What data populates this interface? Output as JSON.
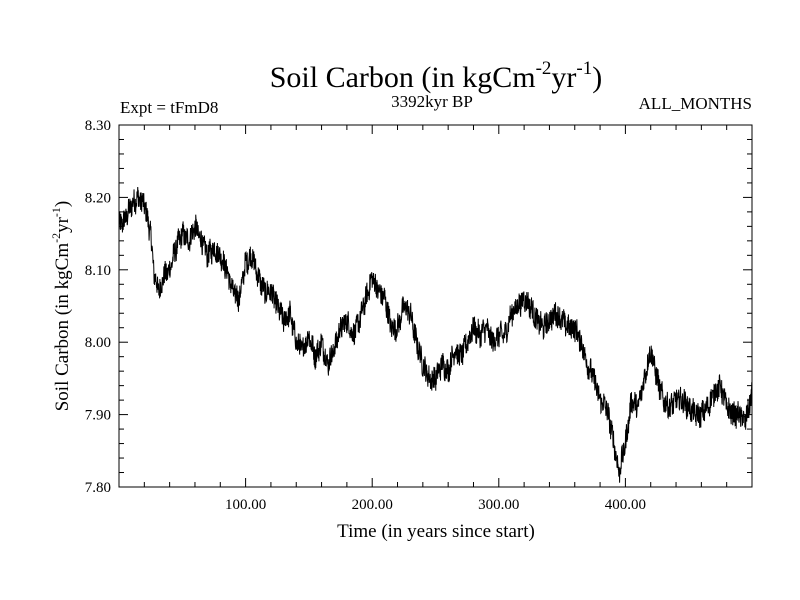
{
  "chart_data": {
    "type": "line",
    "title": {
      "main": "Soil Carbon (in kgCm",
      "sup1": "-2",
      "mid": "yr",
      "sup2": "-1",
      "end": ")"
    },
    "subtitle_left": "Expt = tFmD8",
    "subtitle_center": "3392kyr BP",
    "subtitle_right": "ALL_MONTHS",
    "xlabel": "Time (in years since start)",
    "ylabel": {
      "main": "Soil Carbon (in kgCm",
      "sup1": "-2",
      "mid": "yr",
      "sup2": "-1",
      "end": ")"
    },
    "xlim": [
      0,
      500
    ],
    "ylim": [
      7.8,
      8.3
    ],
    "x_ticks": [
      100,
      200,
      300,
      400
    ],
    "x_tick_labels": [
      "100.00",
      "200.00",
      "300.00",
      "400.00"
    ],
    "y_ticks": [
      7.8,
      7.9,
      8.0,
      8.1,
      8.2,
      8.3
    ],
    "y_tick_labels": [
      "7.80",
      "7.90",
      "8.00",
      "8.10",
      "8.20",
      "8.30"
    ],
    "color": "#000000",
    "series": [
      {
        "name": "Soil Carbon",
        "x": [
          0,
          5,
          10,
          15,
          20,
          25,
          28,
          32,
          35,
          40,
          45,
          50,
          55,
          60,
          65,
          70,
          75,
          80,
          85,
          90,
          95,
          100,
          105,
          110,
          115,
          120,
          125,
          130,
          135,
          140,
          145,
          150,
          155,
          160,
          165,
          170,
          175,
          180,
          185,
          190,
          195,
          200,
          205,
          210,
          215,
          220,
          225,
          230,
          235,
          240,
          245,
          250,
          255,
          260,
          265,
          270,
          275,
          280,
          285,
          290,
          295,
          300,
          305,
          310,
          315,
          320,
          325,
          330,
          335,
          340,
          345,
          350,
          355,
          360,
          365,
          370,
          375,
          380,
          385,
          390,
          395,
          400,
          405,
          410,
          415,
          420,
          425,
          430,
          435,
          440,
          445,
          450,
          455,
          460,
          465,
          470,
          475,
          480,
          485,
          490,
          495,
          500
        ],
        "y": [
          8.16,
          8.17,
          8.19,
          8.2,
          8.19,
          8.15,
          8.09,
          8.07,
          8.09,
          8.1,
          8.13,
          8.15,
          8.14,
          8.16,
          8.14,
          8.12,
          8.13,
          8.12,
          8.1,
          8.07,
          8.06,
          8.11,
          8.12,
          8.09,
          8.07,
          8.07,
          8.05,
          8.03,
          8.04,
          8.0,
          7.99,
          8.01,
          7.98,
          8.0,
          7.97,
          7.99,
          8.02,
          8.03,
          8.01,
          8.03,
          8.06,
          8.09,
          8.07,
          8.06,
          8.02,
          8.02,
          8.05,
          8.04,
          8.0,
          7.97,
          7.95,
          7.95,
          7.97,
          7.96,
          7.99,
          7.98,
          8.0,
          8.02,
          8.01,
          8.02,
          8.0,
          8.01,
          8.01,
          8.04,
          8.05,
          8.06,
          8.05,
          8.03,
          8.02,
          8.03,
          8.04,
          8.03,
          8.02,
          8.02,
          8.0,
          7.97,
          7.95,
          7.92,
          7.91,
          7.87,
          7.82,
          7.86,
          7.92,
          7.91,
          7.95,
          7.99,
          7.95,
          7.92,
          7.91,
          7.92,
          7.92,
          7.91,
          7.9,
          7.9,
          7.91,
          7.93,
          7.94,
          7.91,
          7.9,
          7.9,
          7.89,
          7.93
        ]
      }
    ]
  }
}
